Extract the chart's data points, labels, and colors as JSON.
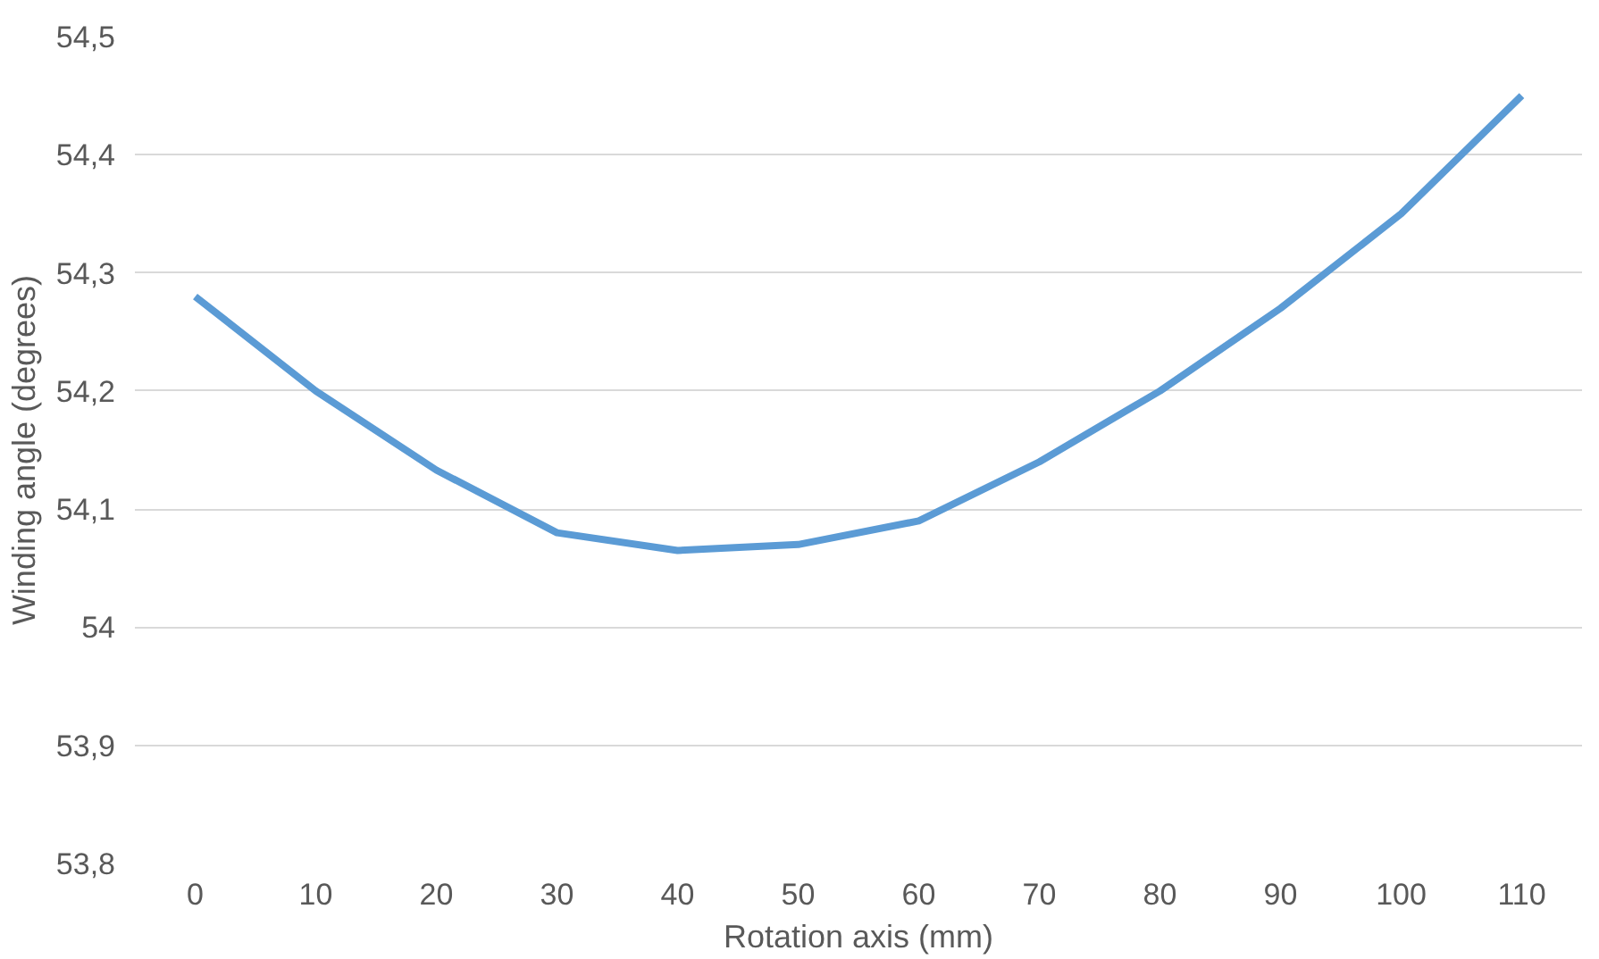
{
  "chart_data": {
    "type": "line",
    "xlabel": "Rotation axis (mm)",
    "ylabel": "Winding angle (degrees)",
    "categories": [
      "0",
      "10",
      "20",
      "30",
      "40",
      "50",
      "60",
      "70",
      "80",
      "90",
      "100",
      "110"
    ],
    "series": [
      {
        "color": "#5b9bd5",
        "values": [
          54.28,
          54.2,
          54.133,
          54.08,
          54.065,
          54.07,
          54.09,
          54.14,
          54.2,
          54.27,
          54.35,
          54.45
        ]
      }
    ],
    "ylim": [
      53.8,
      54.5
    ],
    "yticks": [
      {
        "value": 53.8,
        "label": "53,8"
      },
      {
        "value": 53.9,
        "label": "53,9"
      },
      54,
      {
        "value": 54.1,
        "label": "54,1"
      },
      {
        "value": 54.2,
        "label": "54,2"
      },
      {
        "value": 54.3,
        "label": "54,3"
      },
      {
        "value": 54.4,
        "label": "54,4"
      },
      {
        "value": 54.5,
        "label": "54,5"
      }
    ],
    "grid": "y",
    "marker": "none",
    "line_style": "solid"
  }
}
